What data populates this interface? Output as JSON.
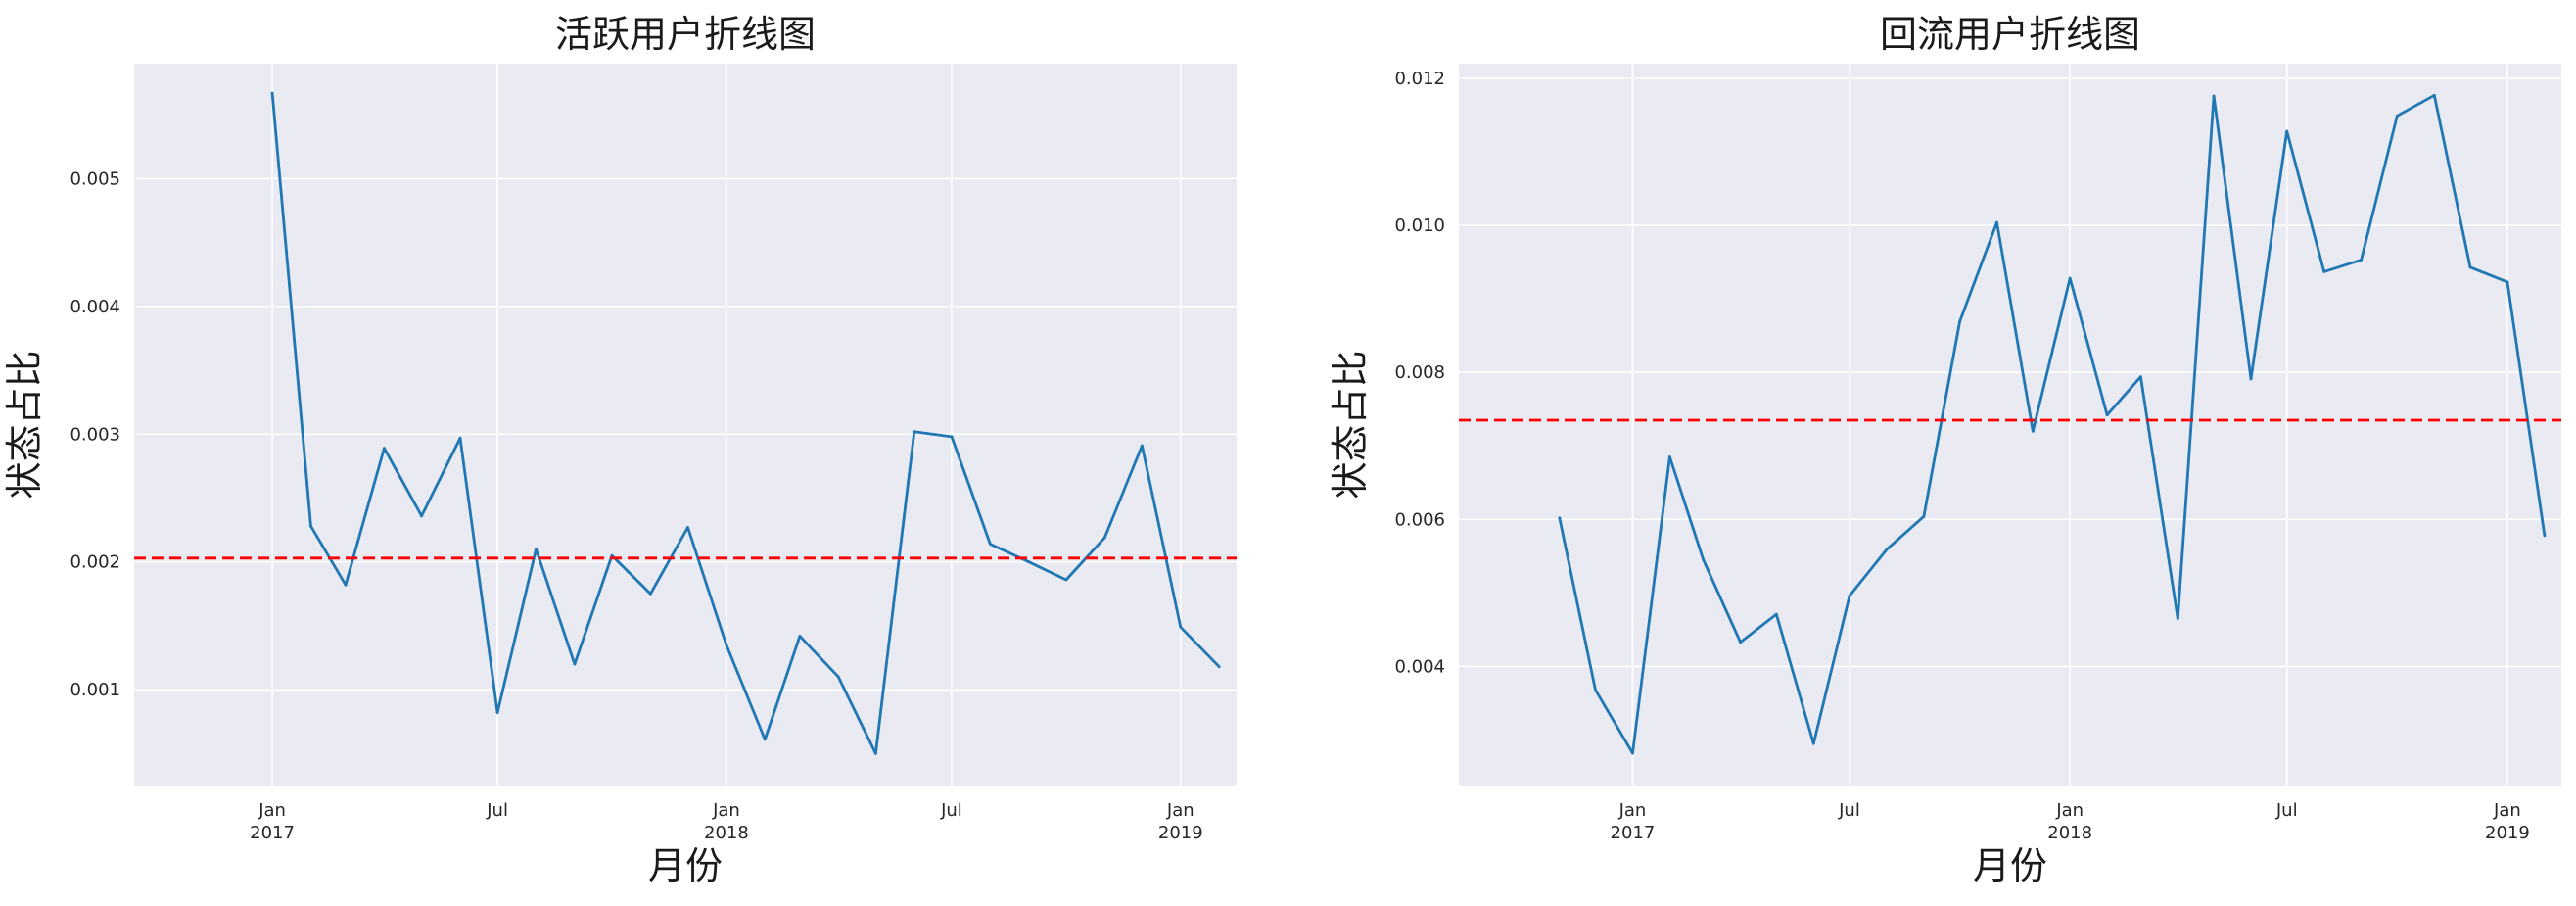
{
  "chart_data": [
    {
      "type": "line",
      "title": "活跃用户折线图",
      "xlabel": "月份",
      "ylabel": "状态占比",
      "grid": true,
      "xlim": [
        "2016-09-12",
        "2019-02-15"
      ],
      "ylim": [
        0.00025,
        0.0059
      ],
      "x_ticks": [
        {
          "date": "2017-01-01",
          "line1": "Jan",
          "line2": "2017"
        },
        {
          "date": "2017-07-01",
          "line1": "Jul",
          "line2": ""
        },
        {
          "date": "2018-01-01",
          "line1": "Jan",
          "line2": "2018"
        },
        {
          "date": "2018-07-01",
          "line1": "Jul",
          "line2": ""
        },
        {
          "date": "2019-01-01",
          "line1": "Jan",
          "line2": "2019"
        }
      ],
      "y_ticks": [
        {
          "value": 0.001,
          "label": "0.001"
        },
        {
          "value": 0.002,
          "label": "0.002"
        },
        {
          "value": 0.003,
          "label": "0.003"
        },
        {
          "value": 0.004,
          "label": "0.004"
        },
        {
          "value": 0.005,
          "label": "0.005"
        }
      ],
      "series": [
        {
          "color": "#1f77b4",
          "x": [
            "2017-01-01",
            "2017-02-01",
            "2017-03-01",
            "2017-04-01",
            "2017-05-01",
            "2017-06-01",
            "2017-07-01",
            "2017-08-01",
            "2017-09-01",
            "2017-10-01",
            "2017-11-01",
            "2017-12-01",
            "2018-01-01",
            "2018-02-01",
            "2018-03-01",
            "2018-04-01",
            "2018-05-01",
            "2018-06-01",
            "2018-07-01",
            "2018-08-01",
            "2018-09-01",
            "2018-10-01",
            "2018-11-01",
            "2018-12-01",
            "2019-01-01",
            "2019-02-01"
          ],
          "y": [
            0.00567,
            0.00228,
            0.00182,
            0.00289,
            0.00236,
            0.00297,
            0.00082,
            0.0021,
            0.0012,
            0.00205,
            0.00175,
            0.00227,
            0.00135,
            0.00061,
            0.00142,
            0.0011,
            0.0005,
            0.00302,
            0.00298,
            0.00214,
            0.002,
            0.00186,
            0.00219,
            0.00291,
            0.00149,
            0.00118
          ]
        }
      ],
      "reference_line": {
        "value": 0.00203,
        "color": "#ff0000",
        "style": "dashed"
      }
    },
    {
      "type": "line",
      "title": "回流用户折线图",
      "xlabel": "月份",
      "ylabel": "状态占比",
      "grid": true,
      "xlim": [
        "2016-08-09",
        "2019-02-15"
      ],
      "ylim": [
        0.00238,
        0.0122
      ],
      "x_ticks": [
        {
          "date": "2017-01-01",
          "line1": "Jan",
          "line2": "2017"
        },
        {
          "date": "2017-07-01",
          "line1": "Jul",
          "line2": ""
        },
        {
          "date": "2018-01-01",
          "line1": "Jan",
          "line2": "2018"
        },
        {
          "date": "2018-07-01",
          "line1": "Jul",
          "line2": ""
        },
        {
          "date": "2019-01-01",
          "line1": "Jan",
          "line2": "2019"
        }
      ],
      "y_ticks": [
        {
          "value": 0.004,
          "label": "0.004"
        },
        {
          "value": 0.006,
          "label": "0.006"
        },
        {
          "value": 0.008,
          "label": "0.008"
        },
        {
          "value": 0.01,
          "label": "0.010"
        },
        {
          "value": 0.012,
          "label": "0.012"
        }
      ],
      "series": [
        {
          "color": "#1f77b4",
          "x": [
            "2016-11-01",
            "2016-12-01",
            "2017-01-01",
            "2017-02-01",
            "2017-03-01",
            "2017-04-01",
            "2017-05-01",
            "2017-06-01",
            "2017-07-01",
            "2017-08-01",
            "2017-09-01",
            "2017-10-01",
            "2017-11-01",
            "2017-12-01",
            "2018-01-01",
            "2018-02-01",
            "2018-03-01",
            "2018-04-01",
            "2018-05-01",
            "2018-06-01",
            "2018-07-01",
            "2018-08-01",
            "2018-09-01",
            "2018-10-01",
            "2018-11-01",
            "2018-12-01",
            "2019-01-01",
            "2019-02-01"
          ],
          "y": [
            0.00602,
            0.00368,
            0.00282,
            0.00685,
            0.00545,
            0.00433,
            0.00471,
            0.00295,
            0.00496,
            0.00559,
            0.00604,
            0.00869,
            0.01004,
            0.0072,
            0.00928,
            0.00742,
            0.00794,
            0.00465,
            0.01176,
            0.00791,
            0.01128,
            0.00937,
            0.00953,
            0.01149,
            0.01177,
            0.00943,
            0.00923,
            0.00578
          ]
        }
      ],
      "reference_line": {
        "value": 0.00735,
        "color": "#ff0000",
        "style": "dashed"
      }
    }
  ]
}
